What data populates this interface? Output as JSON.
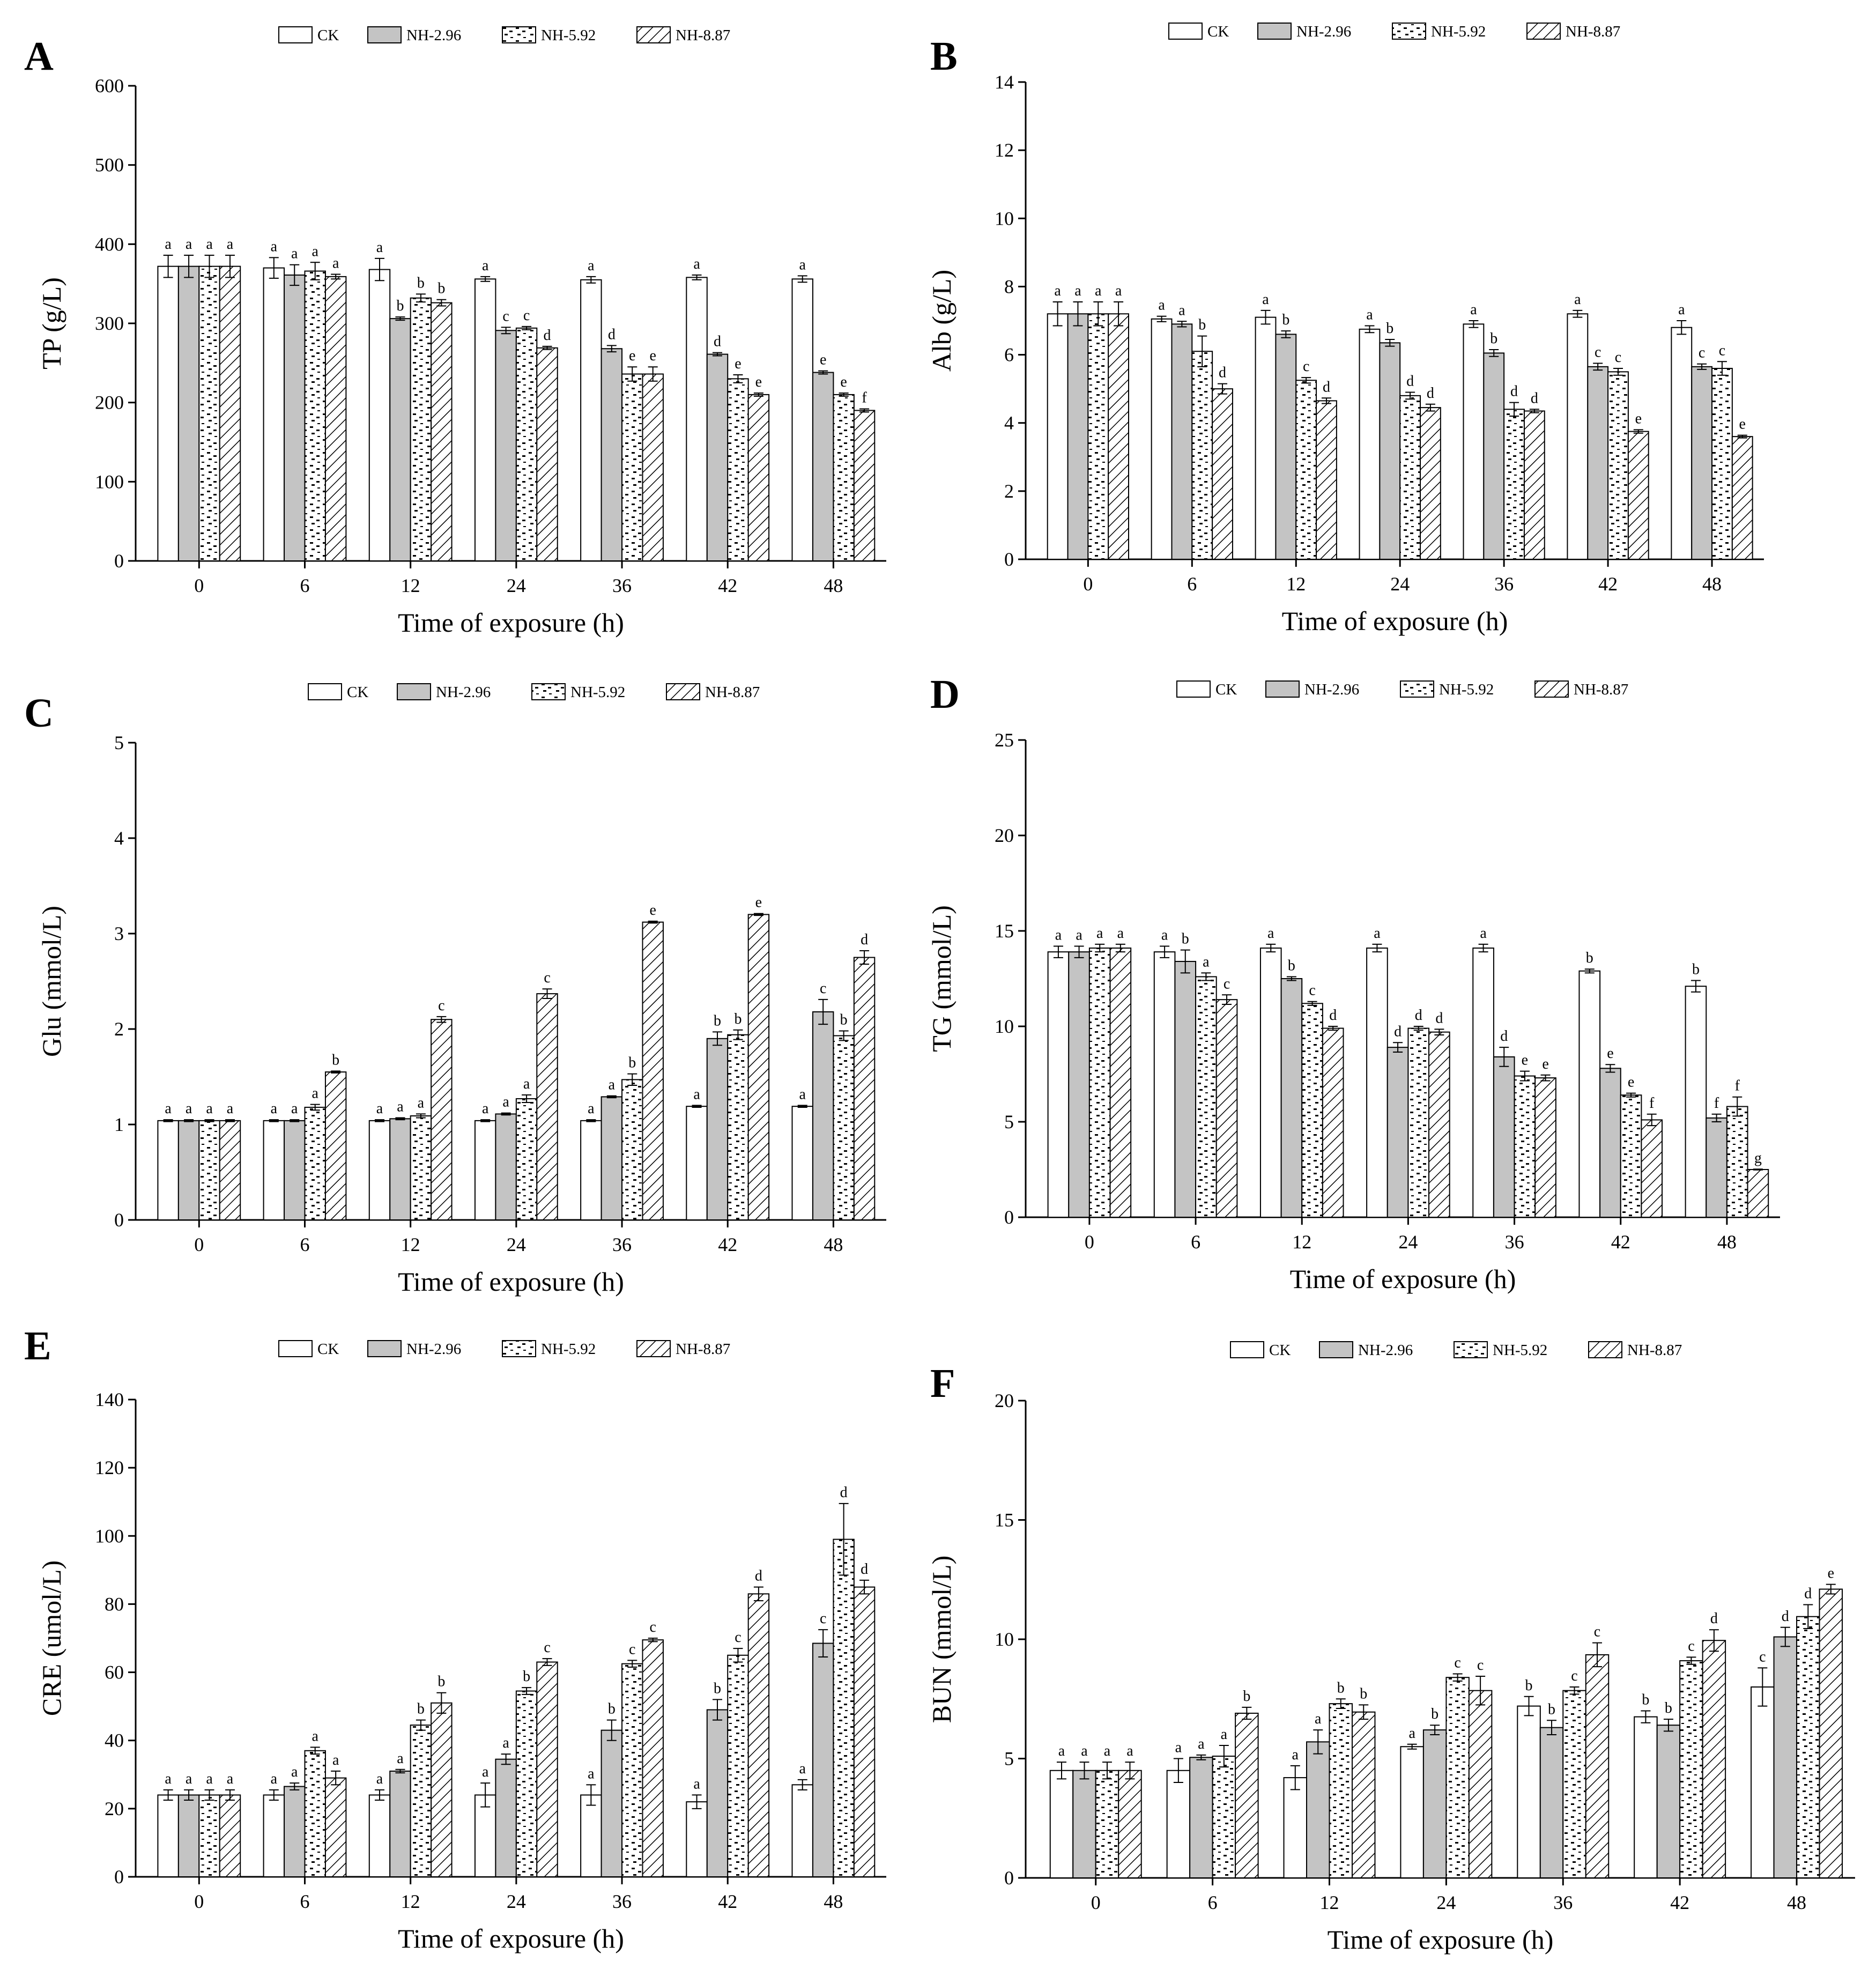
{
  "chart_data": [
    {
      "panel": "A",
      "type": "bar",
      "title": "",
      "xlabel": "Time of exposure (h)",
      "ylabel": "TP (g/L)",
      "ylim": [
        0,
        600
      ],
      "yticks": [
        0,
        100,
        200,
        300,
        400,
        500,
        600
      ],
      "legend_position": "top-center",
      "categories": [
        "0",
        "6",
        "12",
        "24",
        "36",
        "42",
        "48"
      ],
      "series": [
        {
          "name": "CK",
          "values": [
            372,
            370,
            368,
            356,
            355,
            358,
            356
          ],
          "errors": [
            14,
            13,
            14,
            3,
            4,
            3,
            4
          ],
          "labels": [
            "a",
            "a",
            "a",
            "a",
            "a",
            "a",
            "a"
          ]
        },
        {
          "name": "NH-2.96",
          "values": [
            372,
            361,
            306,
            291,
            268,
            261,
            238
          ],
          "errors": [
            14,
            13,
            2,
            4,
            4,
            2,
            2
          ],
          "labels": [
            "a",
            "a",
            "b",
            "c",
            "d",
            "d",
            "e"
          ]
        },
        {
          "name": "NH-5.92",
          "values": [
            372,
            366,
            332,
            294,
            236,
            230,
            210
          ],
          "errors": [
            14,
            11,
            5,
            2,
            9,
            5,
            2
          ],
          "labels": [
            "a",
            "a",
            "b",
            "c",
            "e",
            "e",
            "e"
          ]
        },
        {
          "name": "NH-8.87",
          "values": [
            372,
            359,
            326,
            269,
            236,
            210,
            190
          ],
          "errors": [
            14,
            3,
            4,
            2,
            9,
            2,
            2
          ],
          "labels": [
            "a",
            "a",
            "b",
            "d",
            "e",
            "e",
            "f"
          ]
        }
      ]
    },
    {
      "panel": "B",
      "type": "bar",
      "title": "",
      "xlabel": "Time of exposure (h)",
      "ylabel": "Alb (g/L)",
      "ylim": [
        0,
        14
      ],
      "yticks": [
        0,
        2,
        4,
        6,
        8,
        10,
        12,
        14
      ],
      "legend_position": "top-center",
      "categories": [
        "0",
        "6",
        "12",
        "24",
        "36",
        "42",
        "48"
      ],
      "series": [
        {
          "name": "CK",
          "values": [
            7.2,
            7.05,
            7.1,
            6.75,
            6.9,
            7.2,
            6.8
          ],
          "errors": [
            0.35,
            0.08,
            0.2,
            0.1,
            0.1,
            0.1,
            0.2
          ],
          "labels": [
            "a",
            "a",
            "a",
            "a",
            "a",
            "a",
            "a"
          ]
        },
        {
          "name": "NH-2.96",
          "values": [
            7.2,
            6.9,
            6.6,
            6.35,
            6.05,
            5.65,
            5.65
          ],
          "errors": [
            0.35,
            0.08,
            0.1,
            0.1,
            0.1,
            0.1,
            0.08
          ],
          "labels": [
            "a",
            "a",
            "b",
            "b",
            "b",
            "c",
            "c"
          ]
        },
        {
          "name": "NH-5.92",
          "values": [
            7.2,
            6.1,
            5.25,
            4.8,
            4.4,
            5.5,
            5.6
          ],
          "errors": [
            0.35,
            0.45,
            0.08,
            0.1,
            0.2,
            0.1,
            0.2
          ],
          "labels": [
            "a",
            "b",
            "c",
            "d",
            "d",
            "c",
            "c"
          ]
        },
        {
          "name": "NH-8.87",
          "values": [
            7.2,
            5.0,
            4.65,
            4.45,
            4.35,
            3.75,
            3.6
          ],
          "errors": [
            0.35,
            0.15,
            0.08,
            0.1,
            0.05,
            0.05,
            0.04
          ],
          "labels": [
            "a",
            "d",
            "d",
            "d",
            "d",
            "e",
            "e"
          ]
        }
      ]
    },
    {
      "panel": "C",
      "type": "bar",
      "title": "",
      "xlabel": "Time of exposure (h)",
      "ylabel": "Glu (mmol/L)",
      "ylim": [
        0,
        5
      ],
      "yticks": [
        0,
        1,
        2,
        3,
        4,
        5
      ],
      "legend_position": "top-center",
      "categories": [
        "0",
        "6",
        "12",
        "24",
        "36",
        "42",
        "48"
      ],
      "series": [
        {
          "name": "CK",
          "values": [
            1.04,
            1.04,
            1.04,
            1.04,
            1.04,
            1.19,
            1.19
          ],
          "errors": [
            0.01,
            0.01,
            0.01,
            0.01,
            0.01,
            0.01,
            0.01
          ],
          "labels": [
            "a",
            "a",
            "a",
            "a",
            "a",
            "a",
            "a"
          ]
        },
        {
          "name": "NH-2.96",
          "values": [
            1.04,
            1.04,
            1.06,
            1.11,
            1.29,
            1.9,
            2.18
          ],
          "errors": [
            0.01,
            0.01,
            0.01,
            0.01,
            0.01,
            0.07,
            0.13
          ],
          "labels": [
            "a",
            "a",
            "a",
            "a",
            "a",
            "b",
            "c"
          ]
        },
        {
          "name": "NH-5.92",
          "values": [
            1.04,
            1.18,
            1.09,
            1.27,
            1.47,
            1.94,
            1.93
          ],
          "errors": [
            0.01,
            0.03,
            0.02,
            0.04,
            0.06,
            0.05,
            0.05
          ],
          "labels": [
            "a",
            "a",
            "a",
            "a",
            "b",
            "b",
            "b"
          ]
        },
        {
          "name": "NH-8.87",
          "values": [
            1.04,
            1.55,
            2.1,
            2.37,
            3.12,
            3.2,
            2.75
          ],
          "errors": [
            0.01,
            0.01,
            0.03,
            0.05,
            0.01,
            0.01,
            0.07
          ],
          "labels": [
            "a",
            "b",
            "c",
            "c",
            "e",
            "e",
            "d"
          ]
        }
      ]
    },
    {
      "panel": "D",
      "type": "bar",
      "title": "",
      "xlabel": "Time of exposure (h)",
      "ylabel": "TG (mmol/L)",
      "ylim": [
        0,
        25
      ],
      "yticks": [
        0,
        5,
        10,
        15,
        20,
        25
      ],
      "legend_position": "top-center",
      "categories": [
        "0",
        "6",
        "12",
        "24",
        "36",
        "42",
        "48"
      ],
      "series": [
        {
          "name": "CK",
          "values": [
            13.9,
            13.9,
            14.1,
            14.1,
            14.1,
            12.9,
            12.1
          ],
          "errors": [
            0.3,
            0.3,
            0.2,
            0.2,
            0.2,
            0.1,
            0.3
          ],
          "labels": [
            "a",
            "a",
            "a",
            "a",
            "a",
            "b",
            "b"
          ]
        },
        {
          "name": "NH-2.96",
          "values": [
            13.9,
            13.4,
            12.5,
            8.9,
            8.4,
            7.8,
            5.2
          ],
          "errors": [
            0.3,
            0.6,
            0.1,
            0.25,
            0.5,
            0.2,
            0.2
          ],
          "labels": [
            "a",
            "b",
            "b",
            "d",
            "d",
            "e",
            "f"
          ]
        },
        {
          "name": "NH-5.92",
          "values": [
            14.1,
            12.6,
            11.2,
            9.9,
            7.4,
            6.4,
            5.8
          ],
          "errors": [
            0.2,
            0.2,
            0.1,
            0.1,
            0.25,
            0.1,
            0.5
          ],
          "labels": [
            "a",
            "a",
            "c",
            "d",
            "e",
            "e",
            "f"
          ]
        },
        {
          "name": "NH-8.87",
          "values": [
            14.1,
            11.4,
            9.9,
            9.7,
            7.3,
            5.1,
            2.5
          ],
          "errors": [
            0.2,
            0.25,
            0.1,
            0.15,
            0.15,
            0.3,
            0.02
          ],
          "labels": [
            "a",
            "c",
            "d",
            "d",
            "e",
            "f",
            "g"
          ]
        }
      ]
    },
    {
      "panel": "E",
      "type": "bar",
      "title": "",
      "xlabel": "Time of exposure (h)",
      "ylabel": "CRE (umol/L)",
      "ylim": [
        0,
        140
      ],
      "yticks": [
        0,
        20,
        40,
        60,
        80,
        100,
        120,
        140
      ],
      "legend_position": "top-center",
      "categories": [
        "0",
        "6",
        "12",
        "24",
        "36",
        "42",
        "48"
      ],
      "series": [
        {
          "name": "CK",
          "values": [
            24,
            24,
            24,
            24,
            24,
            22,
            27
          ],
          "errors": [
            1.5,
            1.5,
            1.5,
            3.5,
            3.0,
            2.0,
            1.5
          ],
          "labels": [
            "a",
            "a",
            "a",
            "a",
            "a",
            "a",
            "a"
          ]
        },
        {
          "name": "NH-2.96",
          "values": [
            24,
            26.5,
            31,
            34.5,
            43,
            49,
            68.5
          ],
          "errors": [
            1.5,
            1,
            0.5,
            1.5,
            3,
            3,
            4
          ],
          "labels": [
            "a",
            "a",
            "a",
            "a",
            "b",
            "b",
            "c"
          ]
        },
        {
          "name": "NH-5.92",
          "values": [
            24,
            37,
            44.5,
            54.5,
            62.5,
            65,
            99
          ],
          "errors": [
            1.5,
            1,
            1.5,
            1,
            1,
            2,
            10.5
          ],
          "labels": [
            "a",
            "a",
            "b",
            "b",
            "c",
            "c",
            "d"
          ]
        },
        {
          "name": "NH-8.87",
          "values": [
            24,
            29,
            51,
            63,
            69.5,
            83,
            85
          ],
          "errors": [
            1.5,
            2,
            3,
            1,
            0.5,
            2,
            2
          ],
          "labels": [
            "a",
            "a",
            "b",
            "c",
            "c",
            "d",
            "d"
          ]
        }
      ]
    },
    {
      "panel": "F",
      "type": "bar",
      "title": "",
      "xlabel": "Time of exposure (h)",
      "ylabel": "BUN (mmol/L)",
      "ylim": [
        0,
        20
      ],
      "yticks": [
        0,
        5,
        10,
        15,
        20
      ],
      "legend_position": "top-center",
      "categories": [
        "0",
        "6",
        "12",
        "24",
        "36",
        "42",
        "48"
      ],
      "series": [
        {
          "name": "CK",
          "values": [
            4.5,
            4.5,
            4.2,
            5.5,
            7.2,
            6.75,
            8.0
          ],
          "errors": [
            0.35,
            0.5,
            0.5,
            0.1,
            0.4,
            0.25,
            0.8
          ],
          "labels": [
            "a",
            "a",
            "a",
            "a",
            "b",
            "b",
            "c"
          ]
        },
        {
          "name": "NH-2.96",
          "values": [
            4.5,
            5.05,
            5.7,
            6.2,
            6.3,
            6.4,
            10.1
          ],
          "errors": [
            0.35,
            0.1,
            0.5,
            0.2,
            0.3,
            0.25,
            0.4
          ],
          "labels": [
            "a",
            "a",
            "a",
            "b",
            "b",
            "b",
            "d"
          ]
        },
        {
          "name": "NH-5.92",
          "values": [
            4.5,
            5.1,
            7.3,
            8.4,
            7.85,
            9.1,
            10.95
          ],
          "errors": [
            0.35,
            0.45,
            0.2,
            0.15,
            0.15,
            0.15,
            0.5
          ],
          "labels": [
            "a",
            "a",
            "b",
            "c",
            "c",
            "c",
            "d"
          ]
        },
        {
          "name": "NH-8.87",
          "values": [
            4.5,
            6.9,
            6.95,
            7.85,
            9.35,
            9.95,
            12.1
          ],
          "errors": [
            0.35,
            0.25,
            0.3,
            0.6,
            0.5,
            0.45,
            0.2
          ],
          "labels": [
            "a",
            "b",
            "b",
            "c",
            "c",
            "d",
            "e"
          ]
        }
      ]
    }
  ]
}
